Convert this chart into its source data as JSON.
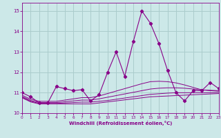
{
  "xlabel": "Windchill (Refroidissement éolien,°C)",
  "xlim": [
    0,
    23
  ],
  "ylim": [
    10.0,
    15.4
  ],
  "yticks": [
    10,
    11,
    12,
    13,
    14,
    15
  ],
  "xticks": [
    0,
    1,
    2,
    3,
    4,
    5,
    6,
    7,
    8,
    9,
    10,
    11,
    12,
    13,
    14,
    15,
    16,
    17,
    18,
    19,
    20,
    21,
    22,
    23
  ],
  "bg_color": "#cce8e8",
  "grid_color": "#aacccc",
  "line_color": "#880088",
  "series_flat": [
    [
      10.75,
      10.55,
      10.45,
      10.45,
      10.45,
      10.45,
      10.45,
      10.45,
      10.45,
      10.5,
      10.55,
      10.6,
      10.65,
      10.7,
      10.75,
      10.8,
      10.82,
      10.84,
      10.86,
      10.88,
      10.9,
      10.92,
      10.94,
      10.96
    ],
    [
      10.78,
      10.58,
      10.48,
      10.48,
      10.48,
      10.5,
      10.52,
      10.54,
      10.54,
      10.58,
      10.62,
      10.68,
      10.74,
      10.8,
      10.86,
      10.92,
      10.95,
      10.98,
      11.0,
      11.0,
      11.0,
      11.0,
      11.0,
      11.02
    ],
    [
      10.82,
      10.62,
      10.52,
      10.52,
      10.52,
      10.56,
      10.6,
      10.64,
      10.64,
      10.7,
      10.78,
      10.86,
      10.94,
      11.02,
      11.1,
      11.18,
      11.22,
      11.24,
      11.24,
      11.22,
      11.18,
      11.14,
      11.12,
      11.1
    ],
    [
      10.88,
      10.68,
      10.58,
      10.58,
      10.58,
      10.64,
      10.7,
      10.76,
      10.76,
      10.84,
      10.96,
      11.08,
      11.2,
      11.32,
      11.44,
      11.54,
      11.56,
      11.54,
      11.48,
      11.38,
      11.26,
      11.14,
      11.1,
      11.08
    ]
  ],
  "series_main": [
    11.0,
    10.8,
    10.5,
    10.5,
    11.3,
    11.2,
    11.1,
    11.15,
    10.6,
    10.9,
    12.0,
    13.0,
    11.8,
    13.5,
    15.0,
    14.4,
    13.4,
    12.1,
    11.0,
    10.6,
    11.1,
    11.1,
    11.5,
    11.2
  ]
}
